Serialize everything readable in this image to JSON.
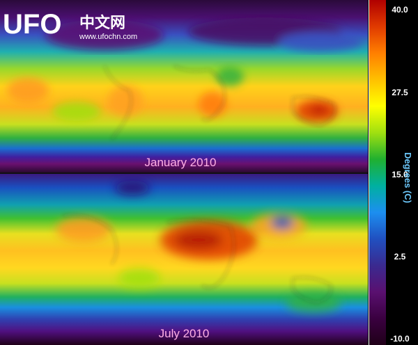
{
  "watermark": {
    "brand": "UFO",
    "chinese": "中文网",
    "url": "www.ufochn.com"
  },
  "maps": [
    {
      "label": "January 2010"
    },
    {
      "label": "July 2010"
    }
  ],
  "colorbar": {
    "title": "Degrees (C)",
    "ticks": [
      "40.0",
      "27.5",
      "15.0",
      "2.5",
      "-10.0"
    ],
    "colors": [
      "#b00000",
      "#e03a00",
      "#ff7f00",
      "#ffc000",
      "#ffff00",
      "#a0e010",
      "#20b030",
      "#00b0a0",
      "#1c8ff0",
      "#2050c0",
      "#3a2a90",
      "#5a1070",
      "#3a0040",
      "#200018"
    ]
  }
}
